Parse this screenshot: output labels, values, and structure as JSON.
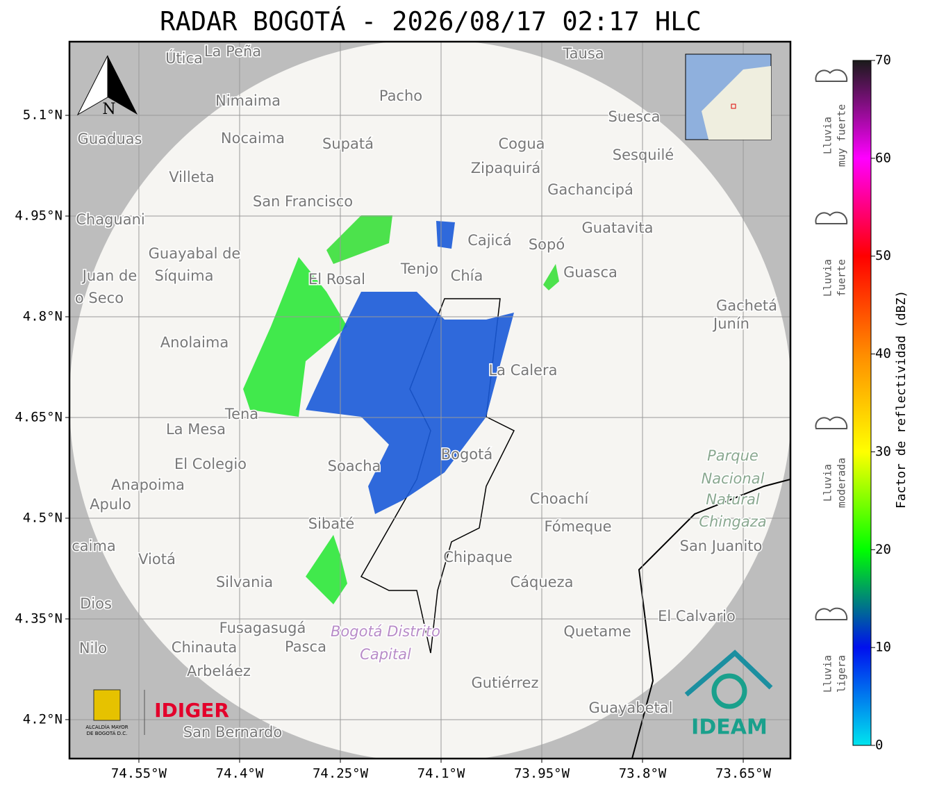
{
  "title": "RADAR BOGOTÁ - 2026/08/17 02:17 HLC",
  "map": {
    "xlim": [
      -74.6534,
      -73.5797
    ],
    "ylim": [
      4.142,
      5.2097
    ],
    "xticks": [
      {
        "value": -74.55,
        "label": "74.55°W"
      },
      {
        "value": -74.4,
        "label": "74.4°W"
      },
      {
        "value": -74.25,
        "label": "74.25°W"
      },
      {
        "value": -74.1,
        "label": "74.1°W"
      },
      {
        "value": -73.95,
        "label": "73.95°W"
      },
      {
        "value": -73.8,
        "label": "73.8°W"
      },
      {
        "value": -73.65,
        "label": "73.65°W"
      }
    ],
    "yticks": [
      {
        "value": 4.2,
        "label": "4.2°N"
      },
      {
        "value": 4.35,
        "label": "4.35°N"
      },
      {
        "value": 4.5,
        "label": "4.5°N"
      },
      {
        "value": 4.65,
        "label": "4.65°N"
      },
      {
        "value": 4.8,
        "label": "4.8°N"
      },
      {
        "value": 4.95,
        "label": "4.95°N"
      },
      {
        "value": 5.1,
        "label": "5.1°N"
      }
    ],
    "north": "N",
    "places": [
      "Útica",
      "La Peña",
      "Tausa",
      "Pacho",
      "Nimaima",
      "Guaduas",
      "Nocaima",
      "Supatá",
      "Cogua",
      "Suesca",
      "Sesquilé",
      "Zipaquirá",
      "Villeta",
      "Gachancipá",
      "San Francisco",
      "Chaguani",
      "Guatavita",
      "Cajicá",
      "Sopó",
      "Guayabal de",
      "Síquima",
      "Juan de",
      "Tenjo",
      "Chía",
      "Guasca",
      "El Rosal",
      "o Seco",
      "Gachetá",
      "Junín",
      "Anolaima",
      "La Calera",
      "Tena",
      "La Mesa",
      "El Colegio",
      "Soacha",
      "Bogotá",
      "Parque",
      "Nacional",
      "Natural",
      "Chingaza",
      "Anapoima",
      "Apulo",
      "Choachí",
      "Sibaté",
      "Fómeque",
      "San Juanito",
      "caima",
      "Viotá",
      "Chipaque",
      "Silvania",
      "Cáqueza",
      "Dios",
      "El Calvario",
      "Fusagasugá",
      "Bogotá Distrito",
      "Capital",
      "Quetame",
      "Nilo",
      "Chinauta",
      "Pasca",
      "Arbeláez",
      "Gutiérrez",
      "Guayabetal",
      "San Bernardo"
    ]
  },
  "colorbar": {
    "label": "Factor de reflectividad (dBZ)",
    "lim": [
      0,
      70
    ],
    "ticks": [
      0,
      10,
      20,
      30,
      40,
      50,
      60,
      70
    ],
    "colors": [
      "#00e5ee",
      "#0010ee",
      "#00ff00",
      "#ffff00",
      "#ff8c00",
      "#ff0000",
      "#ff00ff",
      "#1a1a1a"
    ],
    "categories": [
      [
        "Lluvia",
        "muy fuerte"
      ],
      [
        "Lluvia",
        "fuerte"
      ],
      [
        "Lluvia",
        "moderada"
      ],
      [
        "Lluvia",
        "ligera"
      ]
    ]
  },
  "logos": {
    "bogota": [
      "ALCALDÍA MAYOR",
      "DE BOGOTÁ D.C."
    ],
    "idiger": "IDIGER",
    "ideam": "IDEAM"
  }
}
